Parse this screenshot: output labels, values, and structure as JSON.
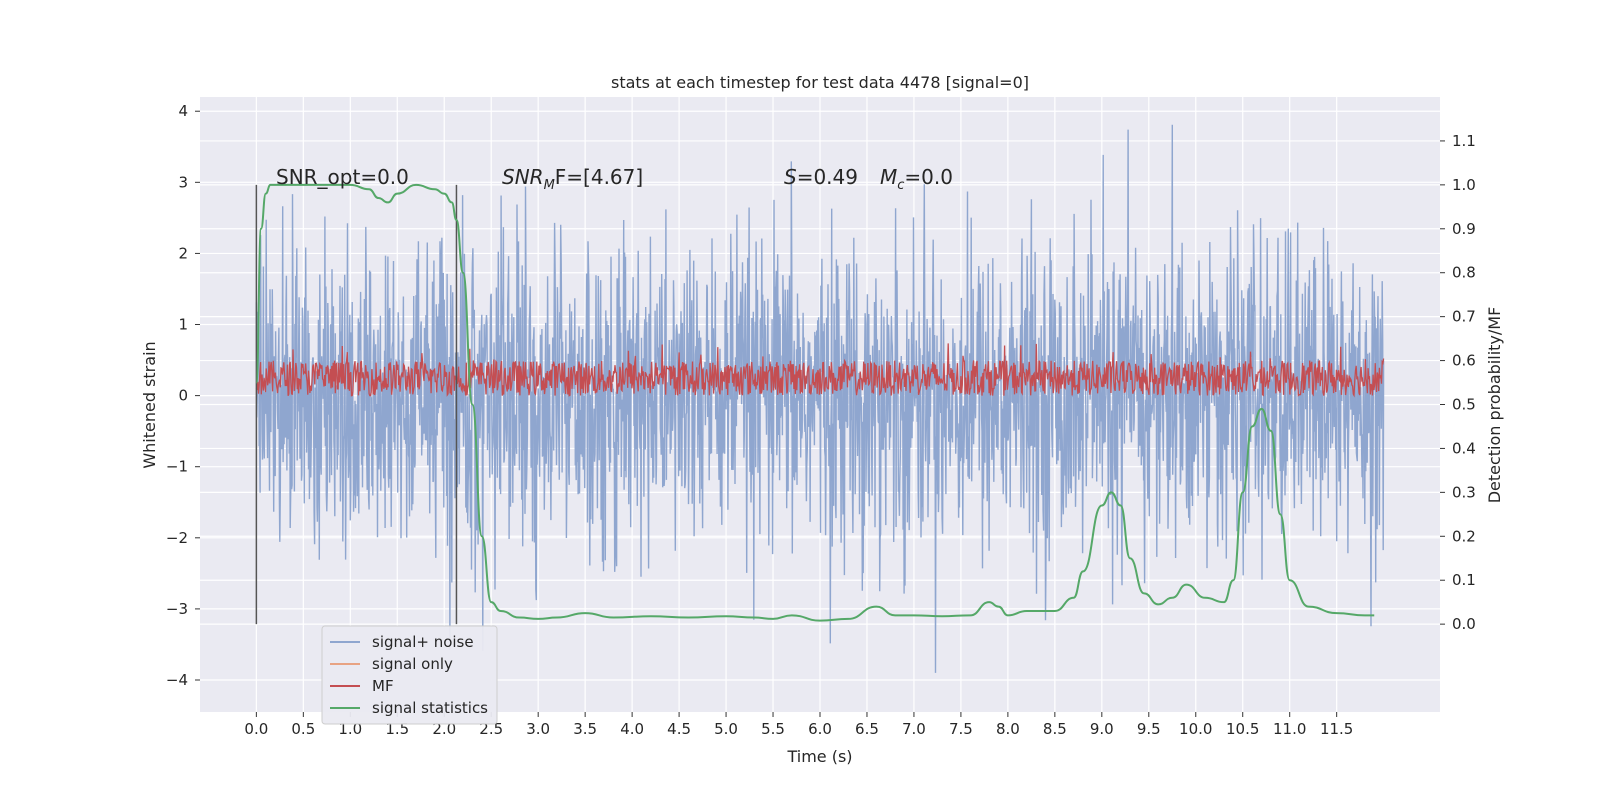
{
  "chart_data": {
    "type": "line",
    "title": "stats at each timestep for test data 4478 [signal=0]",
    "xlabel": "Time (s)",
    "ylabel": "Whitened strain",
    "y2label": "Detection probability/MF",
    "xlim": [
      -0.6,
      12.6
    ],
    "ylim": [
      -4.45,
      4.2
    ],
    "y2lim": [
      -0.2,
      1.2
    ],
    "x_ticks": [
      "0.0",
      "0.5",
      "1.0",
      "1.5",
      "2.0",
      "2.5",
      "3.0",
      "3.5",
      "4.0",
      "4.5",
      "5.0",
      "5.5",
      "6.0",
      "6.5",
      "7.0",
      "7.5",
      "8.0",
      "8.5",
      "9.0",
      "9.5",
      "10.0",
      "10.5",
      "11.0",
      "11.5"
    ],
    "y_ticks": [
      "4",
      "3",
      "2",
      "1",
      "0",
      "−1",
      "−2",
      "−3",
      "−4"
    ],
    "y2_ticks": [
      "1.1",
      "1.0",
      "0.9",
      "0.8",
      "0.7",
      "0.6",
      "0.5",
      "0.4",
      "0.3",
      "0.2",
      "0.1",
      "0.0"
    ],
    "grid": true,
    "legend_position": "lower-left",
    "annotations": {
      "snr_opt": "SNR_opt=0.0",
      "snr_mf_base": "SNR",
      "snr_mf_sub": "M",
      "snr_mf_rest": "F=[4.67]",
      "s_label": "S",
      "s_value": "=0.49",
      "mc_base": "M",
      "mc_sub": "c",
      "mc_value": "=0.0"
    },
    "vertical_lines_x": [
      0.0,
      2.13
    ],
    "series": [
      {
        "name": "signal+ noise",
        "color": "#8fa6cf",
        "description_range": "noise band approximately between -2.5 and 2.5 with spikes to ±3.8",
        "amplitude_envelope": [
          -2.5,
          2.5
        ]
      },
      {
        "name": "signal only",
        "color": "#e8a383",
        "values_constant": 0.0
      },
      {
        "name": "MF",
        "color": "#c44e52",
        "axis": "y2",
        "band": [
          0.52,
          0.6
        ]
      },
      {
        "name": "signal statistics",
        "color": "#55a868",
        "axis": "y2",
        "x": [
          0.0,
          0.05,
          0.1,
          0.15,
          0.3,
          0.6,
          1.0,
          1.2,
          1.3,
          1.4,
          1.5,
          1.7,
          1.9,
          2.0,
          2.08,
          2.13,
          2.2,
          2.3,
          2.4,
          2.5,
          2.6,
          2.8,
          3.0,
          3.2,
          3.5,
          3.8,
          4.2,
          4.6,
          5.0,
          5.3,
          5.5,
          5.7,
          6.0,
          6.3,
          6.6,
          6.8,
          7.0,
          7.3,
          7.6,
          7.8,
          7.9,
          8.0,
          8.2,
          8.5,
          8.7,
          8.8,
          9.0,
          9.1,
          9.2,
          9.3,
          9.45,
          9.6,
          9.75,
          9.9,
          10.1,
          10.3,
          10.4,
          10.5,
          10.6,
          10.7,
          10.8,
          10.9,
          11.0,
          11.2,
          11.5,
          11.8,
          11.9
        ],
        "values": [
          0.55,
          0.9,
          0.98,
          1.0,
          1.0,
          1.0,
          1.0,
          0.99,
          0.97,
          0.96,
          0.98,
          1.0,
          0.99,
          0.98,
          0.96,
          0.92,
          0.8,
          0.5,
          0.2,
          0.05,
          0.03,
          0.015,
          0.012,
          0.015,
          0.025,
          0.015,
          0.018,
          0.015,
          0.018,
          0.015,
          0.012,
          0.02,
          0.008,
          0.012,
          0.04,
          0.02,
          0.02,
          0.018,
          0.02,
          0.05,
          0.04,
          0.02,
          0.03,
          0.03,
          0.06,
          0.12,
          0.27,
          0.3,
          0.27,
          0.15,
          0.07,
          0.045,
          0.06,
          0.09,
          0.06,
          0.05,
          0.1,
          0.3,
          0.45,
          0.49,
          0.44,
          0.25,
          0.1,
          0.04,
          0.025,
          0.02,
          0.02
        ]
      }
    ]
  },
  "legend": {
    "items": [
      {
        "label": "signal+ noise",
        "color": "#8fa6cf"
      },
      {
        "label": "signal only",
        "color": "#e8a383"
      },
      {
        "label": "MF",
        "color": "#c44e52"
      },
      {
        "label": "signal statistics",
        "color": "#55a868"
      }
    ]
  },
  "colors": {
    "plot_bg": "#eaeaf2",
    "grid": "#ffffff",
    "vline": "#555555"
  }
}
